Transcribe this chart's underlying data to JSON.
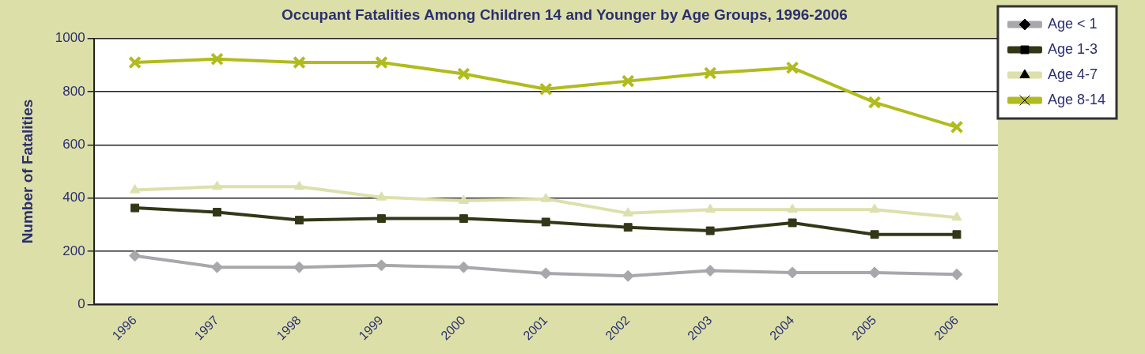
{
  "chart_data": {
    "type": "line",
    "title": "Occupant Fatalities Among Children 14 and Younger by Age Groups, 1996-2006",
    "ylabel": "Number of Fatalities",
    "categories": [
      "1996",
      "1997",
      "1998",
      "1999",
      "2000",
      "2001",
      "2002",
      "2003",
      "2004",
      "2005",
      "2006"
    ],
    "series": [
      {
        "name": "Age < 1",
        "color": "#a7a8ab",
        "marker": "diamond",
        "values": [
          183,
          140,
          140,
          147,
          140,
          117,
          107,
          127,
          120,
          120,
          113
        ]
      },
      {
        "name": "Age 1-3",
        "color": "#343717",
        "marker": "square",
        "values": [
          363,
          347,
          317,
          323,
          323,
          310,
          290,
          277,
          307,
          263,
          263
        ]
      },
      {
        "name": "Age 4-7",
        "color": "#dde0ab",
        "marker": "triangle",
        "values": [
          430,
          443,
          443,
          403,
          390,
          397,
          343,
          357,
          357,
          357,
          327
        ]
      },
      {
        "name": "Age 8-14",
        "color": "#b0bc1e",
        "marker": "cross",
        "values": [
          910,
          923,
          910,
          910,
          867,
          810,
          840,
          870,
          890,
          760,
          667
        ]
      }
    ],
    "ylim": [
      0,
      1000
    ],
    "yticks": [
      0,
      200,
      400,
      600,
      800,
      1000
    ],
    "grid": "y",
    "legend": "right",
    "line_style": "solid"
  }
}
